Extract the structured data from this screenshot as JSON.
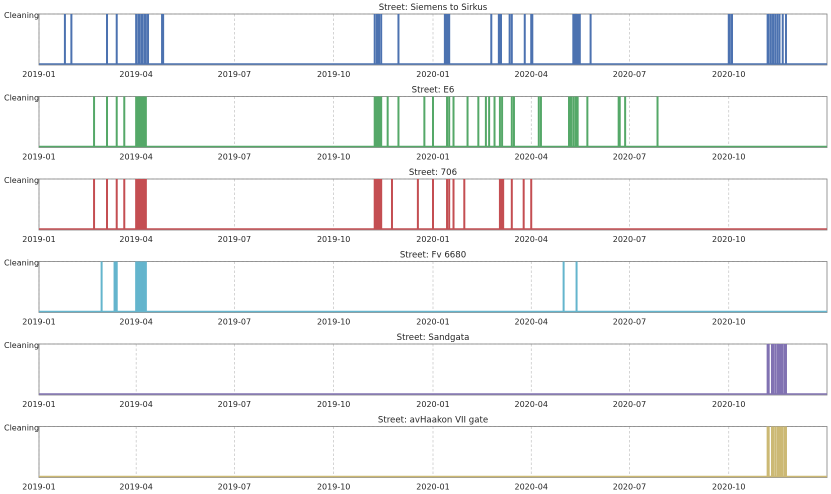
{
  "chart_data": {
    "type": "area",
    "x_ticks": [
      "2019-01",
      "2019-04",
      "2019-07",
      "2019-10",
      "2020-01",
      "2020-04",
      "2020-07",
      "2020-10"
    ],
    "x_range": [
      "2019-01-01",
      "2020-12-31"
    ],
    "y_label": "Cleaning",
    "grid": true,
    "panels": [
      {
        "title": "Street: Siemens to Sirkus",
        "color": "#4c72b0",
        "events": [
          "2019-01-25",
          "2019-01-31",
          "2019-03-05",
          "2019-03-14",
          "2019-04-01",
          "2019-04-03",
          "2019-04-04",
          "2019-04-06",
          "2019-04-07",
          "2019-04-09",
          "2019-04-10",
          "2019-04-12",
          "2019-04-25",
          "2019-04-26",
          "2019-11-08",
          "2019-11-10",
          "2019-11-11",
          "2019-11-12",
          "2019-11-14",
          "2019-11-30",
          "2020-01-12",
          "2020-01-13",
          "2020-01-14",
          "2020-01-15",
          "2020-01-16",
          "2020-02-24",
          "2020-03-02",
          "2020-03-03",
          "2020-03-04",
          "2020-03-12",
          "2020-03-14",
          "2020-03-26",
          "2020-04-01",
          "2020-04-02",
          "2020-05-10",
          "2020-05-11",
          "2020-05-12",
          "2020-05-13",
          "2020-05-14",
          "2020-05-15",
          "2020-05-16",
          "2020-05-26",
          "2020-10-01",
          "2020-10-02",
          "2020-10-04",
          "2020-11-06",
          "2020-11-07",
          "2020-11-09",
          "2020-11-11",
          "2020-11-13",
          "2020-11-15",
          "2020-11-17",
          "2020-11-20",
          "2020-11-23"
        ]
      },
      {
        "title": "Street: E6",
        "color": "#55a868",
        "events": [
          "2019-02-21",
          "2019-03-05",
          "2019-03-14",
          "2019-03-21",
          "2019-04-01",
          "2019-04-02",
          "2019-04-03",
          "2019-04-04",
          "2019-04-05",
          "2019-04-06",
          "2019-04-07",
          "2019-04-08",
          "2019-04-09",
          "2019-04-10",
          "2019-11-08",
          "2019-11-09",
          "2019-11-10",
          "2019-11-11",
          "2019-11-12",
          "2019-11-13",
          "2019-11-14",
          "2019-11-20",
          "2019-11-30",
          "2019-12-24",
          "2020-01-01",
          "2020-01-14",
          "2020-01-16",
          "2020-01-20",
          "2020-02-02",
          "2020-02-12",
          "2020-02-19",
          "2020-02-22",
          "2020-02-27",
          "2020-03-03",
          "2020-03-05",
          "2020-03-14",
          "2020-03-16",
          "2020-04-08",
          "2020-04-10",
          "2020-05-06",
          "2020-05-07",
          "2020-05-08",
          "2020-05-10",
          "2020-05-12",
          "2020-05-13",
          "2020-05-14",
          "2020-05-23",
          "2020-06-21",
          "2020-06-22",
          "2020-06-27",
          "2020-07-27"
        ]
      },
      {
        "title": "Street: 706",
        "color": "#c44e52",
        "events": [
          "2019-02-21",
          "2019-03-05",
          "2019-03-14",
          "2019-03-21",
          "2019-04-01",
          "2019-04-02",
          "2019-04-03",
          "2019-04-04",
          "2019-04-05",
          "2019-04-06",
          "2019-04-07",
          "2019-04-08",
          "2019-04-09",
          "2019-04-10",
          "2019-11-08",
          "2019-11-09",
          "2019-11-10",
          "2019-11-11",
          "2019-11-12",
          "2019-11-13",
          "2019-11-14",
          "2019-11-24",
          "2019-12-18",
          "2020-01-01",
          "2020-01-14",
          "2020-01-16",
          "2020-01-20",
          "2020-01-30",
          "2020-03-03",
          "2020-03-04",
          "2020-03-05",
          "2020-03-06",
          "2020-03-14",
          "2020-03-25",
          "2020-04-01"
        ]
      },
      {
        "title": "Street: Fv 6680",
        "color": "#64b5cd",
        "events": [
          "2019-02-28",
          "2019-03-12",
          "2019-03-13",
          "2019-03-14",
          "2019-04-01",
          "2019-04-02",
          "2019-04-03",
          "2019-04-04",
          "2019-04-05",
          "2019-04-06",
          "2019-04-07",
          "2019-04-08",
          "2019-04-09",
          "2019-04-10",
          "2020-05-01",
          "2020-05-13"
        ]
      },
      {
        "title": "Street: Sandgata",
        "color": "#8172b2",
        "events": [
          "2020-11-06",
          "2020-11-07",
          "2020-11-10",
          "2020-11-11",
          "2020-11-13",
          "2020-11-15",
          "2020-11-16",
          "2020-11-17",
          "2020-11-18",
          "2020-11-19",
          "2020-11-20",
          "2020-11-22",
          "2020-11-23"
        ]
      },
      {
        "title": "Street: avHaakon VII gate",
        "color": "#ccb974",
        "events": [
          "2020-11-06",
          "2020-11-07",
          "2020-11-10",
          "2020-11-11",
          "2020-11-13",
          "2020-11-15",
          "2020-11-16",
          "2020-11-17",
          "2020-11-18",
          "2020-11-19",
          "2020-11-20",
          "2020-11-22",
          "2020-11-23"
        ]
      }
    ]
  }
}
